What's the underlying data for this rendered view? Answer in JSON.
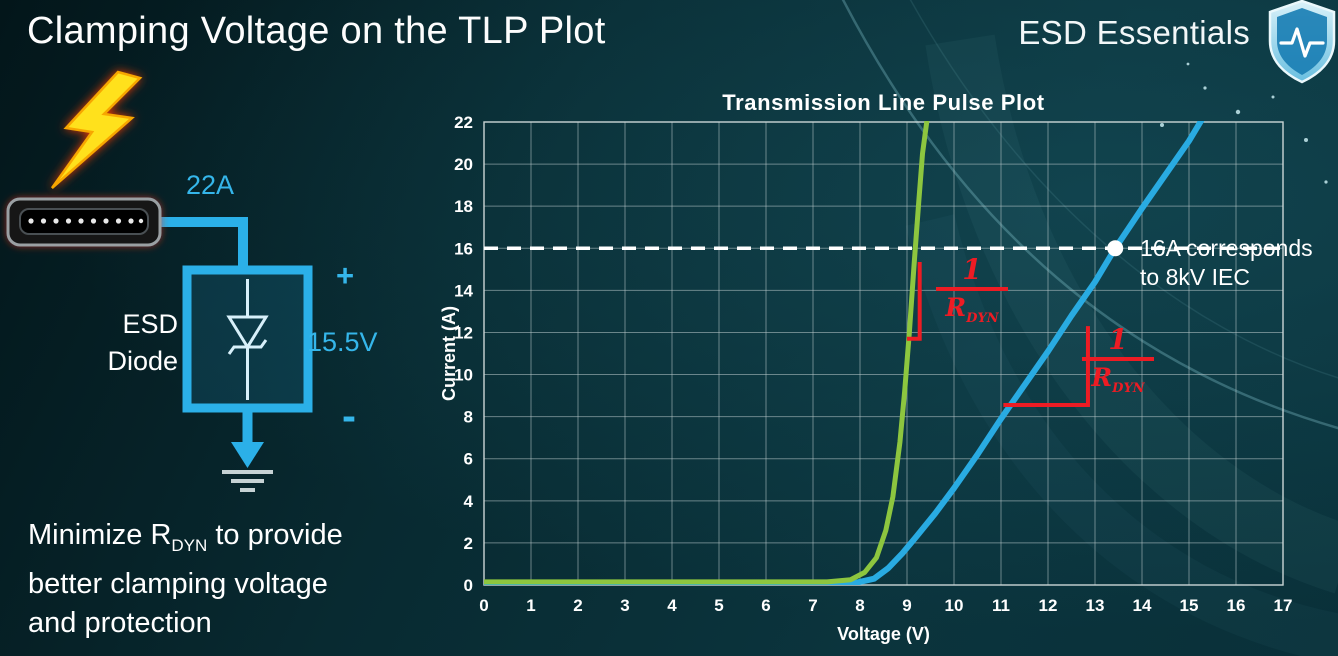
{
  "slide": {
    "title": "Clamping Voltage on the TLP Plot"
  },
  "brand": {
    "name": "ESD Essentials",
    "icon": "shield-pulse-icon"
  },
  "diagram": {
    "surge_current_label": "22A",
    "device_name_line1": "ESD",
    "device_name_line2": "Diode",
    "polarity_plus": "+",
    "polarity_minus": "-",
    "clamp_voltage_label": "15.5V"
  },
  "takeaway": {
    "line1_prefix": "Minimize R",
    "line1_sub": "DYN",
    "line1_suffix": " to provide",
    "line2": "better clamping voltage",
    "line3": "and protection"
  },
  "colors": {
    "accent_blue": "#2bb0e8",
    "green": "#8dc63f",
    "red": "#ed1c24",
    "white": "#ffffff",
    "background_dark": "#082a31"
  },
  "chart_data": {
    "type": "line",
    "title": "Transmission Line Pulse Plot",
    "xlabel": "Voltage (V)",
    "ylabel": "Current (A)",
    "xlim": [
      0,
      17
    ],
    "ylim": [
      0,
      22
    ],
    "xticks": [
      0,
      1,
      2,
      3,
      4,
      5,
      6,
      7,
      8,
      9,
      10,
      11,
      12,
      13,
      14,
      15,
      16,
      17
    ],
    "yticks": [
      0,
      2,
      4,
      6,
      8,
      10,
      12,
      14,
      16,
      18,
      20,
      22
    ],
    "grid": true,
    "grid_color": "rgba(185,200,202,0.55)",
    "legend": "none",
    "series": [
      {
        "name": "blue-curve-higher-rdyn",
        "color": "#29abe2",
        "width": 6,
        "points": [
          [
            0,
            0.1
          ],
          [
            7.9,
            0.1
          ],
          [
            8.3,
            0.3
          ],
          [
            8.6,
            0.8
          ],
          [
            8.9,
            1.5
          ],
          [
            9.2,
            2.3
          ],
          [
            9.6,
            3.4
          ],
          [
            10,
            4.6
          ],
          [
            10.5,
            6.2
          ],
          [
            11,
            7.9
          ],
          [
            11.5,
            9.5
          ],
          [
            12,
            11.1
          ],
          [
            12.5,
            12.8
          ],
          [
            13,
            14.4
          ],
          [
            13.43,
            16
          ],
          [
            14,
            17.9
          ],
          [
            14.5,
            19.5
          ],
          [
            15,
            21.1
          ],
          [
            15.35,
            22.4
          ]
        ]
      },
      {
        "name": "green-curve-low-rdyn",
        "color": "#8dc63f",
        "width": 5,
        "points": [
          [
            0,
            0.15
          ],
          [
            7.3,
            0.15
          ],
          [
            7.8,
            0.25
          ],
          [
            8.1,
            0.6
          ],
          [
            8.35,
            1.3
          ],
          [
            8.55,
            2.6
          ],
          [
            8.7,
            4.2
          ],
          [
            8.85,
            6.8
          ],
          [
            8.95,
            9.2
          ],
          [
            9.05,
            12
          ],
          [
            9.15,
            15.2
          ],
          [
            9.25,
            18.2
          ],
          [
            9.33,
            20.5
          ],
          [
            9.45,
            22.5
          ]
        ]
      }
    ],
    "reference_line": {
      "y": 16,
      "color": "#ffffff",
      "dash": "14 9",
      "width": 3.5
    },
    "marker_point": {
      "x": 13.43,
      "y": 16,
      "radius": 8,
      "color": "#ffffff"
    },
    "slope_markers": [
      {
        "color": "#ed1c24",
        "width": 4,
        "points": [
          [
            9.0,
            11.7
          ],
          [
            9.27,
            11.7
          ],
          [
            9.27,
            15.35
          ]
        ]
      },
      {
        "color": "#ed1c24",
        "width": 4,
        "points": [
          [
            11.05,
            8.55
          ],
          [
            12.85,
            8.55
          ],
          [
            12.85,
            12.3
          ]
        ]
      }
    ],
    "note": {
      "lines": [
        "16A corresponds",
        "to 8kV IEC"
      ]
    },
    "rdyn_fraction": {
      "numerator": "1",
      "denominator_base": "R",
      "denominator_sub": "DYN"
    }
  }
}
